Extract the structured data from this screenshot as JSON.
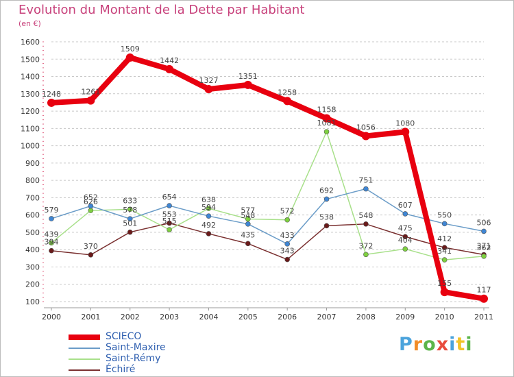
{
  "header": {
    "title": "Evolution du Montant de la Dette par Habitant",
    "subtitle": "(en €)"
  },
  "logo": {
    "text": "Proxiti",
    "colors": [
      "#4ba3dc",
      "#f28c28",
      "#5bb54a",
      "#e84b3c",
      "#4ba3dc",
      "#f2c428",
      "#5bb54a"
    ]
  },
  "chart_data": {
    "type": "line",
    "x": [
      "2000",
      "2001",
      "2002",
      "2003",
      "2004",
      "2005",
      "2006",
      "2007",
      "2008",
      "2009",
      "2010",
      "2011"
    ],
    "ylim": [
      100,
      1600
    ],
    "yticks": [
      100,
      200,
      300,
      400,
      500,
      600,
      700,
      800,
      900,
      1000,
      1100,
      1200,
      1300,
      1400,
      1500,
      1600
    ],
    "grid": "horizontal dashed",
    "legend_position": "bottom-left",
    "series": [
      {
        "name": "SCIECO",
        "color": "#e8000f",
        "values": [
          1248,
          1261,
          1509,
          1442,
          1327,
          1351,
          1258,
          1158,
          1056,
          1080,
          155,
          117
        ]
      },
      {
        "name": "Saint-Maxire",
        "color": "#6a9cc8",
        "point_color": "#3f86d4",
        "values": [
          579,
          652,
          578,
          654,
          594,
          548,
          433,
          692,
          751,
          607,
          550,
          506
        ]
      },
      {
        "name": "Saint-Rémy",
        "color": "#a8e08a",
        "point_color": "#7ed040",
        "values": [
          439,
          626,
          633,
          515,
          638,
          577,
          572,
          1081,
          372,
          404,
          341,
          362
        ]
      },
      {
        "name": "Échiré",
        "color": "#7a3030",
        "point_color": "#6a1a1a",
        "values": [
          394,
          370,
          501,
          553,
          492,
          435,
          343,
          538,
          548,
          475,
          412,
          371
        ]
      }
    ]
  }
}
